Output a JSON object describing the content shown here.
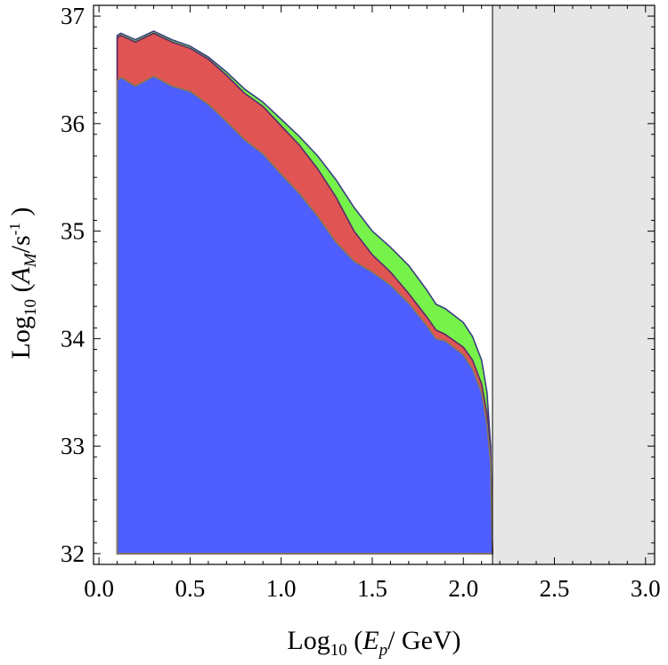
{
  "chart_data": {
    "type": "area",
    "title": "",
    "xlabel": {
      "prefix": "Log",
      "sub": "10",
      "open": " (",
      "var": "E",
      "varsub": "p",
      "rest": "/ GeV)"
    },
    "ylabel": {
      "prefix": "Log",
      "sub": "10",
      "open": " (",
      "var": "A",
      "varsub": "M",
      "rest": "/s",
      "sup": "-1",
      "close": " )"
    },
    "xlim": [
      -0.03,
      3.05
    ],
    "ylim": [
      31.9,
      37.1
    ],
    "x_ticks": [
      "0.0",
      "0.5",
      "1.0",
      "1.5",
      "2.0",
      "2.5",
      "3.0"
    ],
    "x_tick_values": [
      0.0,
      0.5,
      1.0,
      1.5,
      2.0,
      2.5,
      3.0
    ],
    "y_ticks": [
      "32",
      "33",
      "34",
      "35",
      "36",
      "37"
    ],
    "y_tick_values": [
      32,
      33,
      34,
      35,
      36,
      37
    ],
    "grid": false,
    "legend": "none",
    "shaded_region": {
      "x_from": 2.16,
      "x_to": 3.05,
      "color": "#e6e6e6"
    },
    "baseline": 32,
    "series": [
      {
        "color": "#76f24a",
        "x": [
          0.1,
          0.12,
          0.2,
          0.3,
          0.4,
          0.5,
          0.6,
          0.7,
          0.8,
          0.9,
          1.0,
          1.1,
          1.2,
          1.3,
          1.4,
          1.5,
          1.6,
          1.7,
          1.8,
          1.85,
          1.9,
          2.0,
          2.05,
          2.1,
          2.13,
          2.15,
          2.16
        ],
        "y": [
          36.82,
          36.84,
          36.78,
          36.86,
          36.78,
          36.72,
          36.62,
          36.48,
          36.32,
          36.2,
          36.04,
          35.88,
          35.7,
          35.48,
          35.22,
          35.0,
          34.85,
          34.68,
          34.45,
          34.32,
          34.28,
          34.15,
          34.02,
          33.8,
          33.5,
          33.0,
          32.0
        ]
      },
      {
        "color": "#e05454",
        "x": [
          0.1,
          0.12,
          0.2,
          0.3,
          0.4,
          0.5,
          0.6,
          0.7,
          0.8,
          0.9,
          1.0,
          1.1,
          1.2,
          1.3,
          1.4,
          1.5,
          1.6,
          1.7,
          1.8,
          1.85,
          1.9,
          2.0,
          2.05,
          2.1,
          2.13,
          2.15,
          2.16
        ],
        "y": [
          36.8,
          36.82,
          36.76,
          36.84,
          36.76,
          36.7,
          36.6,
          36.45,
          36.28,
          36.16,
          35.98,
          35.8,
          35.58,
          35.32,
          35.0,
          34.78,
          34.62,
          34.42,
          34.2,
          34.08,
          34.04,
          33.92,
          33.8,
          33.58,
          33.3,
          32.9,
          32.0
        ]
      },
      {
        "color": "#4e5eff",
        "x": [
          0.1,
          0.12,
          0.2,
          0.3,
          0.4,
          0.5,
          0.6,
          0.7,
          0.8,
          0.9,
          1.0,
          1.1,
          1.2,
          1.3,
          1.4,
          1.5,
          1.6,
          1.7,
          1.8,
          1.85,
          1.9,
          2.0,
          2.05,
          2.1,
          2.13,
          2.15,
          2.16
        ],
        "y": [
          36.4,
          36.43,
          36.35,
          36.44,
          36.35,
          36.3,
          36.18,
          36.02,
          35.85,
          35.72,
          35.53,
          35.35,
          35.14,
          34.9,
          34.72,
          34.62,
          34.5,
          34.33,
          34.12,
          34.0,
          33.98,
          33.85,
          33.72,
          33.5,
          33.2,
          32.85,
          32.0
        ]
      }
    ]
  }
}
